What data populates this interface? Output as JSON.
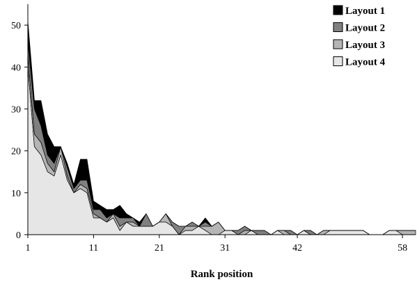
{
  "chart_data": {
    "type": "area",
    "stacked": true,
    "xlabel": "Rank position",
    "ylabel": "",
    "ylim": [
      0,
      55
    ],
    "xlim": [
      1,
      60
    ],
    "yticks": [
      "0",
      "10",
      "20",
      "30",
      "40",
      "50"
    ],
    "xticks": [
      "1",
      "11",
      "21",
      "31",
      "42",
      "58"
    ],
    "grid": false,
    "legend_position": "top-right",
    "x": [
      1,
      2,
      3,
      4,
      5,
      6,
      7,
      8,
      9,
      10,
      11,
      12,
      13,
      14,
      15,
      16,
      17,
      18,
      19,
      20,
      21,
      22,
      23,
      24,
      25,
      26,
      27,
      28,
      29,
      30,
      31,
      32,
      33,
      34,
      35,
      36,
      37,
      38,
      39,
      40,
      41,
      42,
      43,
      44,
      45,
      46,
      47,
      48,
      49,
      50,
      51,
      52,
      53,
      54,
      55,
      56,
      57,
      58,
      59,
      60
    ],
    "series": [
      {
        "name": "Layout 4",
        "color": "#e6e6e6",
        "values": [
          40,
          21,
          19,
          15,
          14,
          19,
          13,
          10,
          11,
          10,
          4,
          4,
          3,
          4,
          1,
          3,
          2,
          2,
          2,
          2,
          3,
          3,
          2,
          0,
          1,
          1,
          2,
          1,
          0,
          0,
          1,
          1,
          0,
          0,
          1,
          0,
          0,
          0,
          1,
          0,
          0,
          0,
          1,
          0,
          0,
          0,
          1,
          1,
          1,
          1,
          1,
          1,
          0,
          0,
          0,
          1,
          1,
          0,
          0,
          0
        ]
      },
      {
        "name": "Layout 3",
        "color": "#b5b5b5",
        "values": [
          3,
          3,
          3,
          2,
          1,
          2,
          1,
          0,
          1,
          1,
          1,
          0,
          0,
          1,
          1,
          0,
          1,
          0,
          0,
          0,
          0,
          2,
          0,
          0,
          1,
          1,
          0,
          1,
          2,
          3,
          0,
          0,
          0,
          1,
          0,
          0,
          0,
          0,
          0,
          1,
          0,
          0,
          0,
          0,
          0,
          1,
          0,
          0,
          0,
          0,
          0,
          0,
          0,
          0,
          0,
          0,
          0,
          1,
          1,
          1
        ]
      },
      {
        "name": "Layout 2",
        "color": "#808080",
        "values": [
          3,
          6,
          4,
          2,
          2,
          0,
          2,
          1,
          1,
          2,
          1,
          2,
          1,
          0,
          2,
          1,
          1,
          0,
          3,
          0,
          0,
          0,
          1,
          2,
          0,
          1,
          0,
          1,
          0,
          0,
          0,
          0,
          1,
          1,
          0,
          1,
          1,
          0,
          0,
          0,
          1,
          0,
          0,
          1,
          0,
          0,
          0,
          0,
          0,
          0,
          0,
          0,
          0,
          0,
          0,
          0,
          0,
          0,
          0,
          0
        ]
      },
      {
        "name": "Layout 1",
        "color": "#000000",
        "values": [
          5,
          2,
          6,
          5,
          4,
          0,
          1,
          1,
          5,
          5,
          2,
          1,
          2,
          1,
          3,
          1,
          0,
          1,
          0,
          0,
          0,
          0,
          0,
          0,
          0,
          0,
          0,
          1,
          0,
          0,
          0,
          0,
          0,
          0,
          0,
          0,
          0,
          0,
          0,
          0,
          0,
          0,
          0,
          0,
          0,
          0,
          0,
          0,
          0,
          0,
          0,
          0,
          0,
          0,
          0,
          0,
          0,
          0,
          0,
          0
        ]
      }
    ],
    "legend": [
      {
        "name": "Layout 1",
        "color": "#000000"
      },
      {
        "name": "Layout 2",
        "color": "#808080"
      },
      {
        "name": "Layout 3",
        "color": "#b5b5b5"
      },
      {
        "name": "Layout 4",
        "color": "#e6e6e6"
      }
    ]
  }
}
